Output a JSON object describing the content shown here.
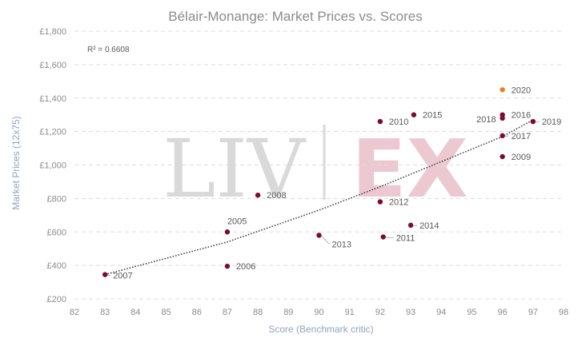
{
  "chart_data": {
    "type": "scatter",
    "title": "Bélair-Monange: Market Prices vs. Scores",
    "xlabel": "Score (Benchmark critic)",
    "ylabel": "Market Prices (12x75)",
    "xlim": [
      82,
      98
    ],
    "ylim": [
      200,
      1800
    ],
    "x_ticks": [
      82,
      83,
      84,
      85,
      86,
      87,
      88,
      89,
      90,
      91,
      92,
      93,
      94,
      95,
      96,
      97,
      98
    ],
    "y_ticks": [
      200,
      400,
      600,
      800,
      1000,
      1200,
      1400,
      1600,
      1800
    ],
    "y_tick_labels": [
      "£200",
      "£400",
      "£600",
      "£800",
      "£1,000",
      "£1,200",
      "£1,400",
      "£1,600",
      "£1,800"
    ],
    "grid": true,
    "annotation": "R² = 0.6608",
    "watermark": "LIV|EX",
    "colors": {
      "point": "#7b0c2e",
      "highlight": "#f07d1a",
      "trend": "#404040",
      "watermark_liv": "#d9d9d9",
      "watermark_ex": "#ecc9d1"
    },
    "points": [
      {
        "label": "2007",
        "x": 83,
        "y": 345,
        "highlight": false
      },
      {
        "label": "2005",
        "x": 87,
        "y": 600,
        "highlight": false
      },
      {
        "label": "2006",
        "x": 87,
        "y": 395,
        "highlight": false
      },
      {
        "label": "2008",
        "x": 88,
        "y": 820,
        "highlight": false
      },
      {
        "label": "2013",
        "x": 90,
        "y": 580,
        "highlight": false
      },
      {
        "label": "2010",
        "x": 92,
        "y": 1260,
        "highlight": false
      },
      {
        "label": "2012",
        "x": 92,
        "y": 780,
        "highlight": false
      },
      {
        "label": "2011",
        "x": 92.1,
        "y": 570,
        "highlight": false
      },
      {
        "label": "2015",
        "x": 93.1,
        "y": 1300,
        "highlight": false
      },
      {
        "label": "2014",
        "x": 93,
        "y": 640,
        "highlight": false
      },
      {
        "label": "2020",
        "x": 96,
        "y": 1450,
        "highlight": true
      },
      {
        "label": "2016",
        "x": 96,
        "y": 1300,
        "highlight": false
      },
      {
        "label": "2018",
        "x": 96,
        "y": 1280,
        "highlight": false
      },
      {
        "label": "2017",
        "x": 96,
        "y": 1175,
        "highlight": false
      },
      {
        "label": "2009",
        "x": 96,
        "y": 1050,
        "highlight": false
      },
      {
        "label": "2019",
        "x": 97,
        "y": 1260,
        "highlight": false
      }
    ],
    "trendline": {
      "type": "polynomial",
      "points": [
        [
          83,
          345
        ],
        [
          87,
          540
        ],
        [
          90,
          730
        ],
        [
          92,
          870
        ],
        [
          94,
          1020
        ],
        [
          96,
          1170
        ],
        [
          97,
          1270
        ]
      ]
    }
  }
}
